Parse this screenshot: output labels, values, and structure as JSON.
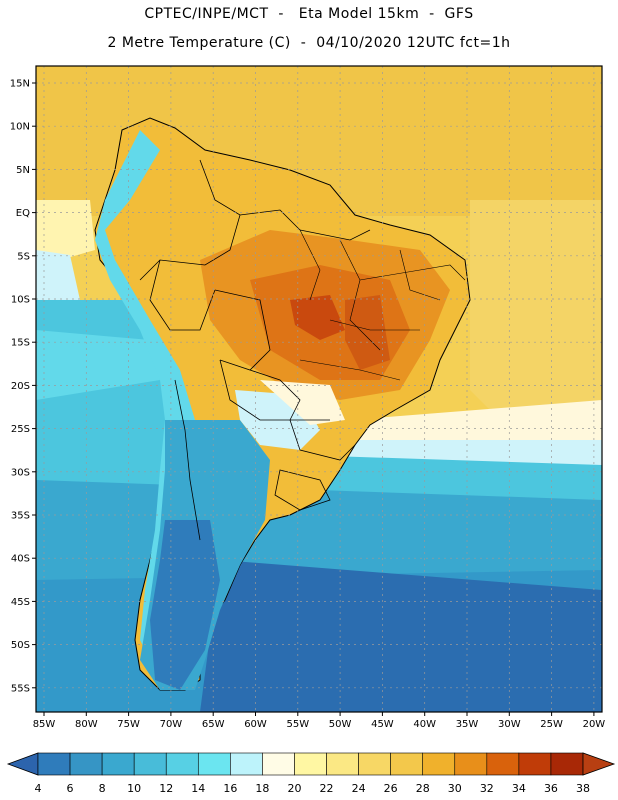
{
  "header": {
    "line1": "CPTEC/INPE/MCT  -   Eta Model 15km  -  GFS",
    "line2": "2 Metre Temperature (C)  -  04/10/2020 12UTC fct=1h"
  },
  "map": {
    "lat_labels": [
      "15N",
      "10N",
      "5N",
      "EQ",
      "5S",
      "10S",
      "15S",
      "20S",
      "25S",
      "30S",
      "35S",
      "40S",
      "45S",
      "50S",
      "55S"
    ],
    "lon_labels": [
      "85W",
      "80W",
      "75W",
      "70W",
      "65W",
      "60W",
      "55W",
      "50W",
      "45W",
      "40W",
      "35W",
      "30W",
      "25W",
      "20W"
    ],
    "colors": {
      "ocean_warm": "#f4d055",
      "ocean_mid": "#f0cb4c",
      "land_warm": "#f2bd39",
      "land_hot": "#e89422",
      "land_hotter": "#de7416",
      "land_hottest": "#c9490e",
      "cool_mid": "#4cc6de",
      "cool_light": "#62d9ea",
      "cool_dark": "#3399c9",
      "cool_deep": "#2b6db0",
      "pale": "#cff3fa",
      "cream": "#fff8dc",
      "border": "#000000"
    }
  },
  "colorbar": {
    "labels": [
      "4",
      "6",
      "8",
      "10",
      "12",
      "14",
      "16",
      "18",
      "20",
      "22",
      "24",
      "26",
      "28",
      "30",
      "32",
      "34",
      "36",
      "38"
    ],
    "colors": [
      "#2c64ad",
      "#2f7cbb",
      "#3695c5",
      "#3aa8cf",
      "#48bcd9",
      "#57d0e4",
      "#6be5f0",
      "#bdf3fb",
      "#fffce6",
      "#fff7a3",
      "#fbe884",
      "#f7d765",
      "#f3c84b",
      "#f0b12c",
      "#e88f1a",
      "#d9620c",
      "#c03c08",
      "#a82806",
      "#b83f12"
    ]
  }
}
